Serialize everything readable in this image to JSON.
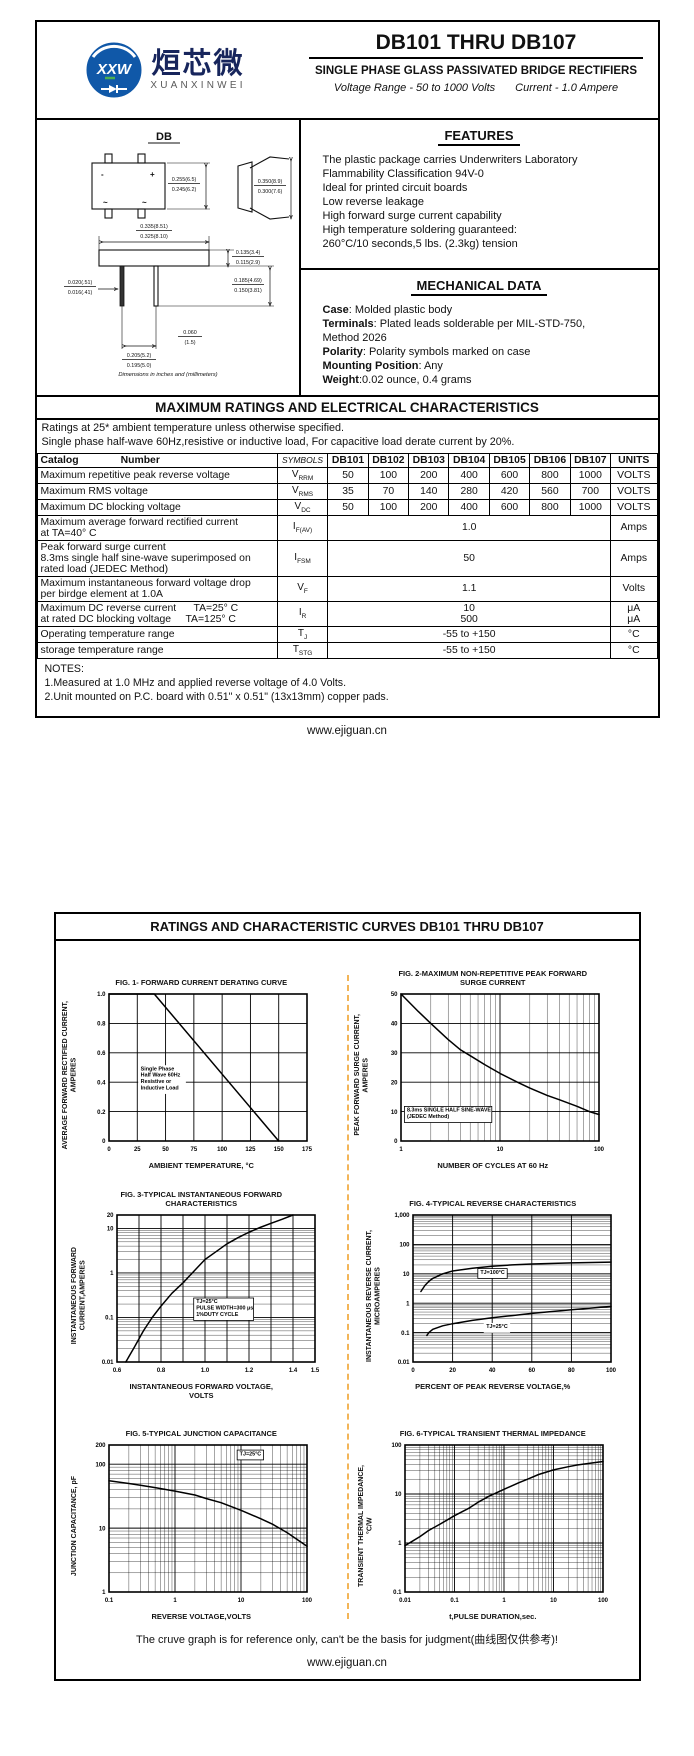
{
  "page1": {
    "logo": {
      "monogram": "XXW",
      "brand_cn": "烜芯微",
      "brand_en": "XUANXINWEI"
    },
    "title": "DB101 THRU DB107",
    "subtitle": "SINGLE PHASE GLASS PASSIVATED BRIDGE RECTIFIERS",
    "voltage_range": "Voltage Range - 50 to 1000 Volts",
    "current": "Current -  1.0 Ampere",
    "drawing": {
      "package": "DB",
      "minus": "-",
      "plus": "+",
      "ac1": "~",
      "ac2": "~",
      "dims": {
        "height_a": "0.255(6.5)",
        "height_b": "0.245(6.2)",
        "side_a": "0.350(8.9)",
        "side_b": "0.300(7.6)",
        "width_a": "0.335(8.51)",
        "width_b": "0.325(8.10)",
        "body_a": "0.135(3.4)",
        "body_b": "0.115(2.9)",
        "leadlen_a": "0.185(4.69)",
        "leadlen_b": "0.150(3.81)",
        "leadw_a": "0.020(.51)",
        "leadw_b": "0.016(.41)",
        "pitch_a": "0.205(5.2)",
        "pitch_b": "0.195(5.0)",
        "seat_a": "0.060",
        "seat_b": "(1.5)"
      },
      "caption": "Dimensions in inches and (millimeters)"
    },
    "features": {
      "heading": "FEATURES",
      "items": [
        "The plastic package carries Underwriters Laboratory",
        "Flammability Classification 94V-0",
        "Ideal for printed circuit boards",
        "Low reverse leakage",
        "High forward surge current capability",
        "High temperature soldering guaranteed:",
        "260°C/10 seconds,5 lbs. (2.3kg) tension"
      ]
    },
    "mech": {
      "heading": "MECHANICAL DATA",
      "lines": [
        {
          "bold": "Case",
          "rest": ": Molded plastic body"
        },
        {
          "bold": "Terminals",
          "rest": ": Plated leads solderable per MIL-STD-750,"
        },
        {
          "bold": "",
          "rest": "Method 2026"
        },
        {
          "bold": "Polarity",
          "rest": ": Polarity symbols marked on case"
        },
        {
          "bold": "Mounting Position",
          "rest": ": Any"
        },
        {
          "bold": "Weight",
          "rest": ":0.02 ounce, 0.4 grams"
        }
      ]
    },
    "ratings": {
      "banner": "MAXIMUM RATINGS AND ELECTRICAL CHARACTERISTICS",
      "cond1": "Ratings at 25* ambient temperature unless otherwise specified.",
      "cond2": "Single phase half-wave 60Hz,resistive or inductive load, For capacitive load derate current by 20%."
    },
    "table": {
      "catalog_label": "Catalog",
      "number_label": "Number",
      "symbols_label": "SYMBOLS",
      "devices": [
        "DB101",
        "DB102",
        "DB103",
        "DB104",
        "DB105",
        "DB106",
        "DB107"
      ],
      "units_label": "UNITS",
      "rows": [
        {
          "label": "Maximum repetitive peak reverse voltage",
          "sym": "V",
          "sub": "RRM",
          "values": [
            "50",
            "100",
            "200",
            "400",
            "600",
            "800",
            "1000"
          ],
          "unit": "VOLTS"
        },
        {
          "label": "Maximum RMS voltage",
          "sym": "V",
          "sub": "RMS",
          "values": [
            "35",
            "70",
            "140",
            "280",
            "420",
            "560",
            "700"
          ],
          "unit": "VOLTS"
        },
        {
          "label": "Maximum DC blocking voltage",
          "sym": "V",
          "sub": "DC",
          "values": [
            "50",
            "100",
            "200",
            "400",
            "600",
            "800",
            "1000"
          ],
          "unit": "VOLTS"
        },
        {
          "label": "Maximum average forward rectified current\nat TA=40° C",
          "sym": "I",
          "sub": "F(AV)",
          "span": "1.0",
          "unit": "Amps"
        },
        {
          "label": "Peak forward surge current\n8.3ms single half sine-wave superimposed on\nrated load (JEDEC Method)",
          "sym": "I",
          "sub": "FSM",
          "span": "50",
          "unit": "Amps"
        },
        {
          "label": "Maximum instantaneous forward voltage drop\nper birdge element at 1.0A",
          "sym": "V",
          "sub": "F",
          "span": "1.1",
          "unit": "Volts"
        },
        {
          "label": "Maximum DC reverse current      TA=25° C\nat rated DC blocking voltage     TA=125° C",
          "sym": "I",
          "sub": "R",
          "span": "10\n500",
          "unit": "μA\nμA"
        },
        {
          "label": "Operating temperature range",
          "sym": "T",
          "sub": "J",
          "span": "-55 to +150",
          "unit": "°C"
        },
        {
          "label": "storage temperature range",
          "sym": "T",
          "sub": "STG",
          "span": "-55 to +150",
          "unit": "°C"
        }
      ]
    },
    "notes": {
      "heading": "NOTES:",
      "lines": [
        "1.Measured at 1.0 MHz and applied reverse voltage of 4.0 Volts.",
        "2.Unit mounted on P.C. board with 0.51\"  x 0.51\"  (13x13mm) copper pads."
      ]
    }
  },
  "footer1": "www.ejiguan.cn",
  "page2": {
    "banner": "RATINGS AND CHARACTERISTIC CURVES DB101 THRU DB107",
    "disclaimer": "The cruve graph is for reference only, can't be the basis for judgment(曲线图仅供参考)!",
    "footer": "www.ejiguan.cn"
  },
  "chart_data": [
    {
      "type": "line",
      "title": "FIG. 1- FORWARD CURRENT DERATING CURVE",
      "xlabel": "AMBIENT TEMPERATURE, °C",
      "ylabel": "AVERAGE FORWARD RECTIFIED CURRENT,\nAMPERES",
      "x": {
        "scale": "linear",
        "min": 0,
        "max": 175,
        "ticks": [
          [
            0,
            "0"
          ],
          [
            25,
            "25"
          ],
          [
            50,
            "50"
          ],
          [
            75,
            "75"
          ],
          [
            100,
            "100"
          ],
          [
            125,
            "125"
          ],
          [
            150,
            "150"
          ],
          [
            175,
            "175"
          ]
        ]
      },
      "y": {
        "scale": "linear",
        "min": 0,
        "max": 1.0,
        "ticks": [
          [
            0,
            "0"
          ],
          [
            0.2,
            "0.2"
          ],
          [
            0.4,
            "0.4"
          ],
          [
            0.6,
            "0.6"
          ],
          [
            0.8,
            "0.8"
          ],
          [
            1.0,
            "1.0"
          ]
        ]
      },
      "series": [
        {
          "name": "derating",
          "points": [
            [
              0,
              1.0
            ],
            [
              40,
              1.0
            ],
            [
              150,
              0
            ]
          ]
        }
      ],
      "annotations": [
        {
          "text": "Single Phase\nHalf Wave 60Hz\nResistive or\nInductive Load",
          "x": 0.16,
          "y": 0.52,
          "border": false
        }
      ]
    },
    {
      "type": "line",
      "title": "FIG. 2-MAXIMUM NON-REPETITIVE PEAK FORWARD\nSURGE CURRENT",
      "xlabel": "NUMBER OF CYCLES AT 60 Hz",
      "ylabel": "PEAK  FORWARD SURGE CURRENT,\nAMPERES",
      "x": {
        "scale": "log",
        "min": 1,
        "max": 100,
        "ticks": [
          [
            1,
            "1"
          ],
          [
            10,
            "10"
          ],
          [
            100,
            "100"
          ]
        ]
      },
      "y": {
        "scale": "linear",
        "min": 0,
        "max": 50,
        "ticks": [
          [
            0,
            "0"
          ],
          [
            10,
            "10"
          ],
          [
            20,
            "20"
          ],
          [
            30,
            "30"
          ],
          [
            40,
            "40"
          ],
          [
            50,
            "50"
          ]
        ]
      },
      "series": [
        {
          "name": "surge",
          "points": [
            [
              1,
              50
            ],
            [
              1.5,
              44
            ],
            [
              2,
              40
            ],
            [
              3,
              34.5
            ],
            [
              4,
              31
            ],
            [
              5,
              29
            ],
            [
              7,
              26
            ],
            [
              10,
              23
            ],
            [
              15,
              20
            ],
            [
              20,
              18
            ],
            [
              30,
              15.5
            ],
            [
              40,
              14
            ],
            [
              60,
              11.8
            ],
            [
              80,
              10
            ],
            [
              100,
              9
            ]
          ]
        }
      ],
      "annotations": [
        {
          "text": "8.3ms SINGLE HALF SINE-WAVE\n(JEDEC Method)",
          "x": 0.03,
          "y": 0.8,
          "border": true
        }
      ]
    },
    {
      "type": "line",
      "title": "FIG. 3-TYPICAL INSTANTANEOUS FORWARD\nCHARACTERISTICS",
      "xlabel": "INSTANTANEOUS FORWARD VOLTAGE,\nVOLTS",
      "ylabel": "INSTANTANEOUS FORWARD\nCURRENT,AMPERES",
      "x": {
        "scale": "linear",
        "min": 0.6,
        "max": 1.5,
        "grid": [
          0.6,
          0.7,
          0.8,
          0.9,
          1.0,
          1.1,
          1.2,
          1.3,
          1.4,
          1.5
        ],
        "ticks": [
          [
            0.6,
            "0.6"
          ],
          [
            0.8,
            "0.8"
          ],
          [
            1.0,
            "1.0"
          ],
          [
            1.2,
            "1.2"
          ],
          [
            1.4,
            "1.4"
          ],
          [
            1.5,
            "1.5"
          ]
        ]
      },
      "y": {
        "scale": "log",
        "min": 0.01,
        "max": 20,
        "ticks": [
          [
            0.01,
            "0.01"
          ],
          [
            0.1,
            "0.1"
          ],
          [
            1,
            "1"
          ],
          [
            10,
            "10"
          ],
          [
            20,
            "20"
          ]
        ]
      },
      "series": [
        {
          "name": "vf",
          "points": [
            [
              0.64,
              0.01
            ],
            [
              0.68,
              0.022
            ],
            [
              0.72,
              0.05
            ],
            [
              0.76,
              0.1
            ],
            [
              0.8,
              0.18
            ],
            [
              0.85,
              0.35
            ],
            [
              0.9,
              0.6
            ],
            [
              0.95,
              1.1
            ],
            [
              1.0,
              2.0
            ],
            [
              1.05,
              3.0
            ],
            [
              1.1,
              4.5
            ],
            [
              1.15,
              6.2
            ],
            [
              1.2,
              8.2
            ],
            [
              1.25,
              10.5
            ],
            [
              1.3,
              13
            ],
            [
              1.35,
              16
            ],
            [
              1.4,
              20
            ]
          ]
        }
      ],
      "annotations": [
        {
          "text": "TJ=25°C\nPULSE WIDTH=300 μs\n1%DUTY CYCLE",
          "x": 0.4,
          "y": 0.6,
          "border": true
        }
      ]
    },
    {
      "type": "line",
      "title": "FIG. 4-TYPICAL REVERSE CHARACTERISTICS",
      "xlabel": "PERCENT OF PEAK REVERSE VOLTAGE,%",
      "ylabel": "INSTANTANEOUS REVERSE CURRENT,\nMICROAMPERES",
      "x": {
        "scale": "linear",
        "min": 0,
        "max": 100,
        "ticks": [
          [
            0,
            "0"
          ],
          [
            20,
            "20"
          ],
          [
            40,
            "40"
          ],
          [
            60,
            "60"
          ],
          [
            80,
            "80"
          ],
          [
            100,
            "100"
          ]
        ]
      },
      "y": {
        "scale": "log",
        "min": 0.01,
        "max": 1000,
        "ticks": [
          [
            0.01,
            "0.01"
          ],
          [
            0.1,
            "0.1"
          ],
          [
            1,
            "1"
          ],
          [
            10,
            "10"
          ],
          [
            100,
            "100"
          ],
          [
            1000,
            "1,000"
          ]
        ]
      },
      "series": [
        {
          "name": "TJ=100°C",
          "points": [
            [
              4,
              2.5
            ],
            [
              6,
              4
            ],
            [
              8,
              5.5
            ],
            [
              10,
              7
            ],
            [
              15,
              10
            ],
            [
              20,
              12.5
            ],
            [
              30,
              15.5
            ],
            [
              40,
              18
            ],
            [
              50,
              20
            ],
            [
              60,
              21.5
            ],
            [
              80,
              23.5
            ],
            [
              100,
              25
            ]
          ]
        },
        {
          "name": "TJ=25°C",
          "points": [
            [
              7,
              0.08
            ],
            [
              8,
              0.1
            ],
            [
              10,
              0.13
            ],
            [
              15,
              0.17
            ],
            [
              20,
              0.2
            ],
            [
              30,
              0.26
            ],
            [
              40,
              0.32
            ],
            [
              50,
              0.38
            ],
            [
              60,
              0.45
            ],
            [
              80,
              0.6
            ],
            [
              100,
              0.78
            ]
          ]
        }
      ],
      "annotations": [
        {
          "text": "TJ=100°C",
          "x": 0.34,
          "y": 0.4,
          "border": true
        },
        {
          "text": "TJ=25°C",
          "x": 0.37,
          "y": 0.77,
          "border": false
        }
      ]
    },
    {
      "type": "line",
      "title": "FIG. 5-TYPICAL JUNCTION CAPACITANCE",
      "xlabel": "REVERSE VOLTAGE,VOLTS",
      "ylabel": "JUNCTION CAPACITANCE, pF",
      "x": {
        "scale": "log",
        "min": 0.1,
        "max": 100,
        "ticks": [
          [
            0.1,
            "0.1"
          ],
          [
            1,
            "1"
          ],
          [
            10,
            "10"
          ],
          [
            100,
            "100"
          ]
        ]
      },
      "y": {
        "scale": "log",
        "min": 1,
        "max": 200,
        "ticks": [
          [
            1,
            "1"
          ],
          [
            10,
            "10"
          ],
          [
            100,
            "100"
          ],
          [
            200,
            "200"
          ]
        ]
      },
      "series": [
        {
          "name": "cj",
          "points": [
            [
              0.1,
              55
            ],
            [
              0.2,
              50
            ],
            [
              0.3,
              47
            ],
            [
              0.5,
              43
            ],
            [
              1,
              38
            ],
            [
              2,
              33
            ],
            [
              3,
              29
            ],
            [
              5,
              25
            ],
            [
              10,
              19
            ],
            [
              20,
              14
            ],
            [
              30,
              11.5
            ],
            [
              50,
              8.5
            ],
            [
              100,
              5.2
            ]
          ]
        }
      ],
      "annotations": [
        {
          "text": "TJ=25°C",
          "x": 0.66,
          "y": 0.07,
          "border": true
        }
      ]
    },
    {
      "type": "line",
      "title": "FIG. 6-TYPICAL TRANSIENT THERMAL IMPEDANCE",
      "xlabel": "t,PULSE DURATION,sec.",
      "ylabel": "TRANSIENT THERMAL IMPEDANCE,\n°C/W",
      "x": {
        "scale": "log",
        "min": 0.01,
        "max": 100,
        "ticks": [
          [
            0.01,
            "0.01"
          ],
          [
            0.1,
            "0.1"
          ],
          [
            1,
            "1"
          ],
          [
            10,
            "10"
          ],
          [
            100,
            "100"
          ]
        ]
      },
      "y": {
        "scale": "log",
        "min": 0.1,
        "max": 100,
        "ticks": [
          [
            0.1,
            "0.1"
          ],
          [
            1,
            "1"
          ],
          [
            10,
            "10"
          ],
          [
            100,
            "100"
          ]
        ]
      },
      "series": [
        {
          "name": "zth",
          "points": [
            [
              0.01,
              0.88
            ],
            [
              0.02,
              1.35
            ],
            [
              0.03,
              1.8
            ],
            [
              0.05,
              2.4
            ],
            [
              0.1,
              3.6
            ],
            [
              0.2,
              5.2
            ],
            [
              0.3,
              6.8
            ],
            [
              0.5,
              9
            ],
            [
              1,
              12.5
            ],
            [
              2,
              17
            ],
            [
              3,
              20
            ],
            [
              5,
              25
            ],
            [
              10,
              31
            ],
            [
              20,
              36
            ],
            [
              30,
              39
            ],
            [
              50,
              42
            ],
            [
              100,
              46
            ]
          ]
        }
      ],
      "annotations": []
    }
  ]
}
